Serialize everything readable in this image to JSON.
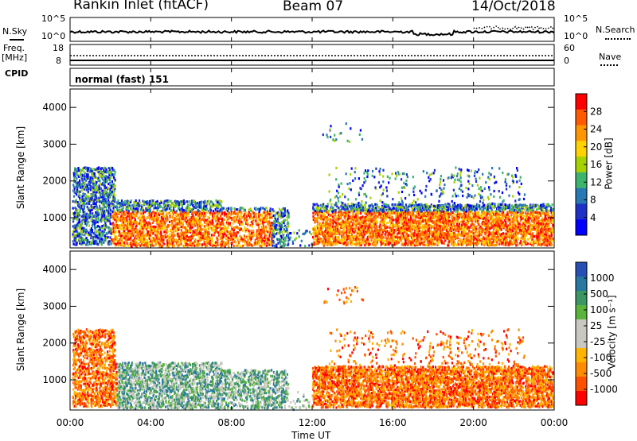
{
  "header": {
    "station": "Rankin Inlet (fitACF)",
    "beam": "Beam 07",
    "date": "14/Oct/2018"
  },
  "top_panels": {
    "nsky_label": "N.Sky",
    "nsearch_label": "N.Search",
    "nsky_ticks": [
      "10^5",
      "10^0"
    ],
    "nsearch_ticks": [
      "10^5",
      "10^0"
    ],
    "freq_label": "Freq.",
    "freq_unit": "[MHz]",
    "freq_ticks": [
      "18",
      "8"
    ],
    "nave_label": "Nave",
    "nave_ticks": [
      "60",
      "0"
    ],
    "cpid_label": "CPID",
    "cpid_value": "normal (fast) 151"
  },
  "chart_data": [
    {
      "type": "heatmap",
      "name": "power",
      "ylabel": "Slant Range [km]",
      "xlabel": "",
      "y_ticks": [
        "4000",
        "3000",
        "2000",
        "1000"
      ],
      "x_ticks": [],
      "ylim": [
        180,
        4500
      ],
      "colorbar": {
        "label": "Power [dB]",
        "ticks": [
          "28",
          "24",
          "20",
          "16",
          "12",
          "8",
          "4"
        ],
        "colors": [
          "#ff0000",
          "#ff5a00",
          "#ff9600",
          "#ffd200",
          "#a6d200",
          "#3cb46e",
          "#2878b4",
          "#1e32c8",
          "#0000ff"
        ]
      }
    },
    {
      "type": "heatmap",
      "name": "velocity",
      "ylabel": "Slant Range [km]",
      "xlabel": "Time UT",
      "y_ticks": [
        "4000",
        "3000",
        "2000",
        "1000"
      ],
      "x_ticks": [
        "00:00",
        "04:00",
        "08:00",
        "12:00",
        "16:00",
        "20:00",
        "00:00"
      ],
      "ylim": [
        180,
        4500
      ],
      "colorbar": {
        "label": "Velocity [m s⁻¹]",
        "ticks": [
          "1000",
          "500",
          "100",
          "25",
          "-25",
          "-100",
          "-500",
          "-1000"
        ],
        "colors": [
          "#2850b4",
          "#2878a0",
          "#3c9664",
          "#5ab43c",
          "#c8c8c0",
          "#c8c8c0",
          "#ffb400",
          "#ff8c00",
          "#ff5000",
          "#ff0000"
        ]
      }
    }
  ]
}
